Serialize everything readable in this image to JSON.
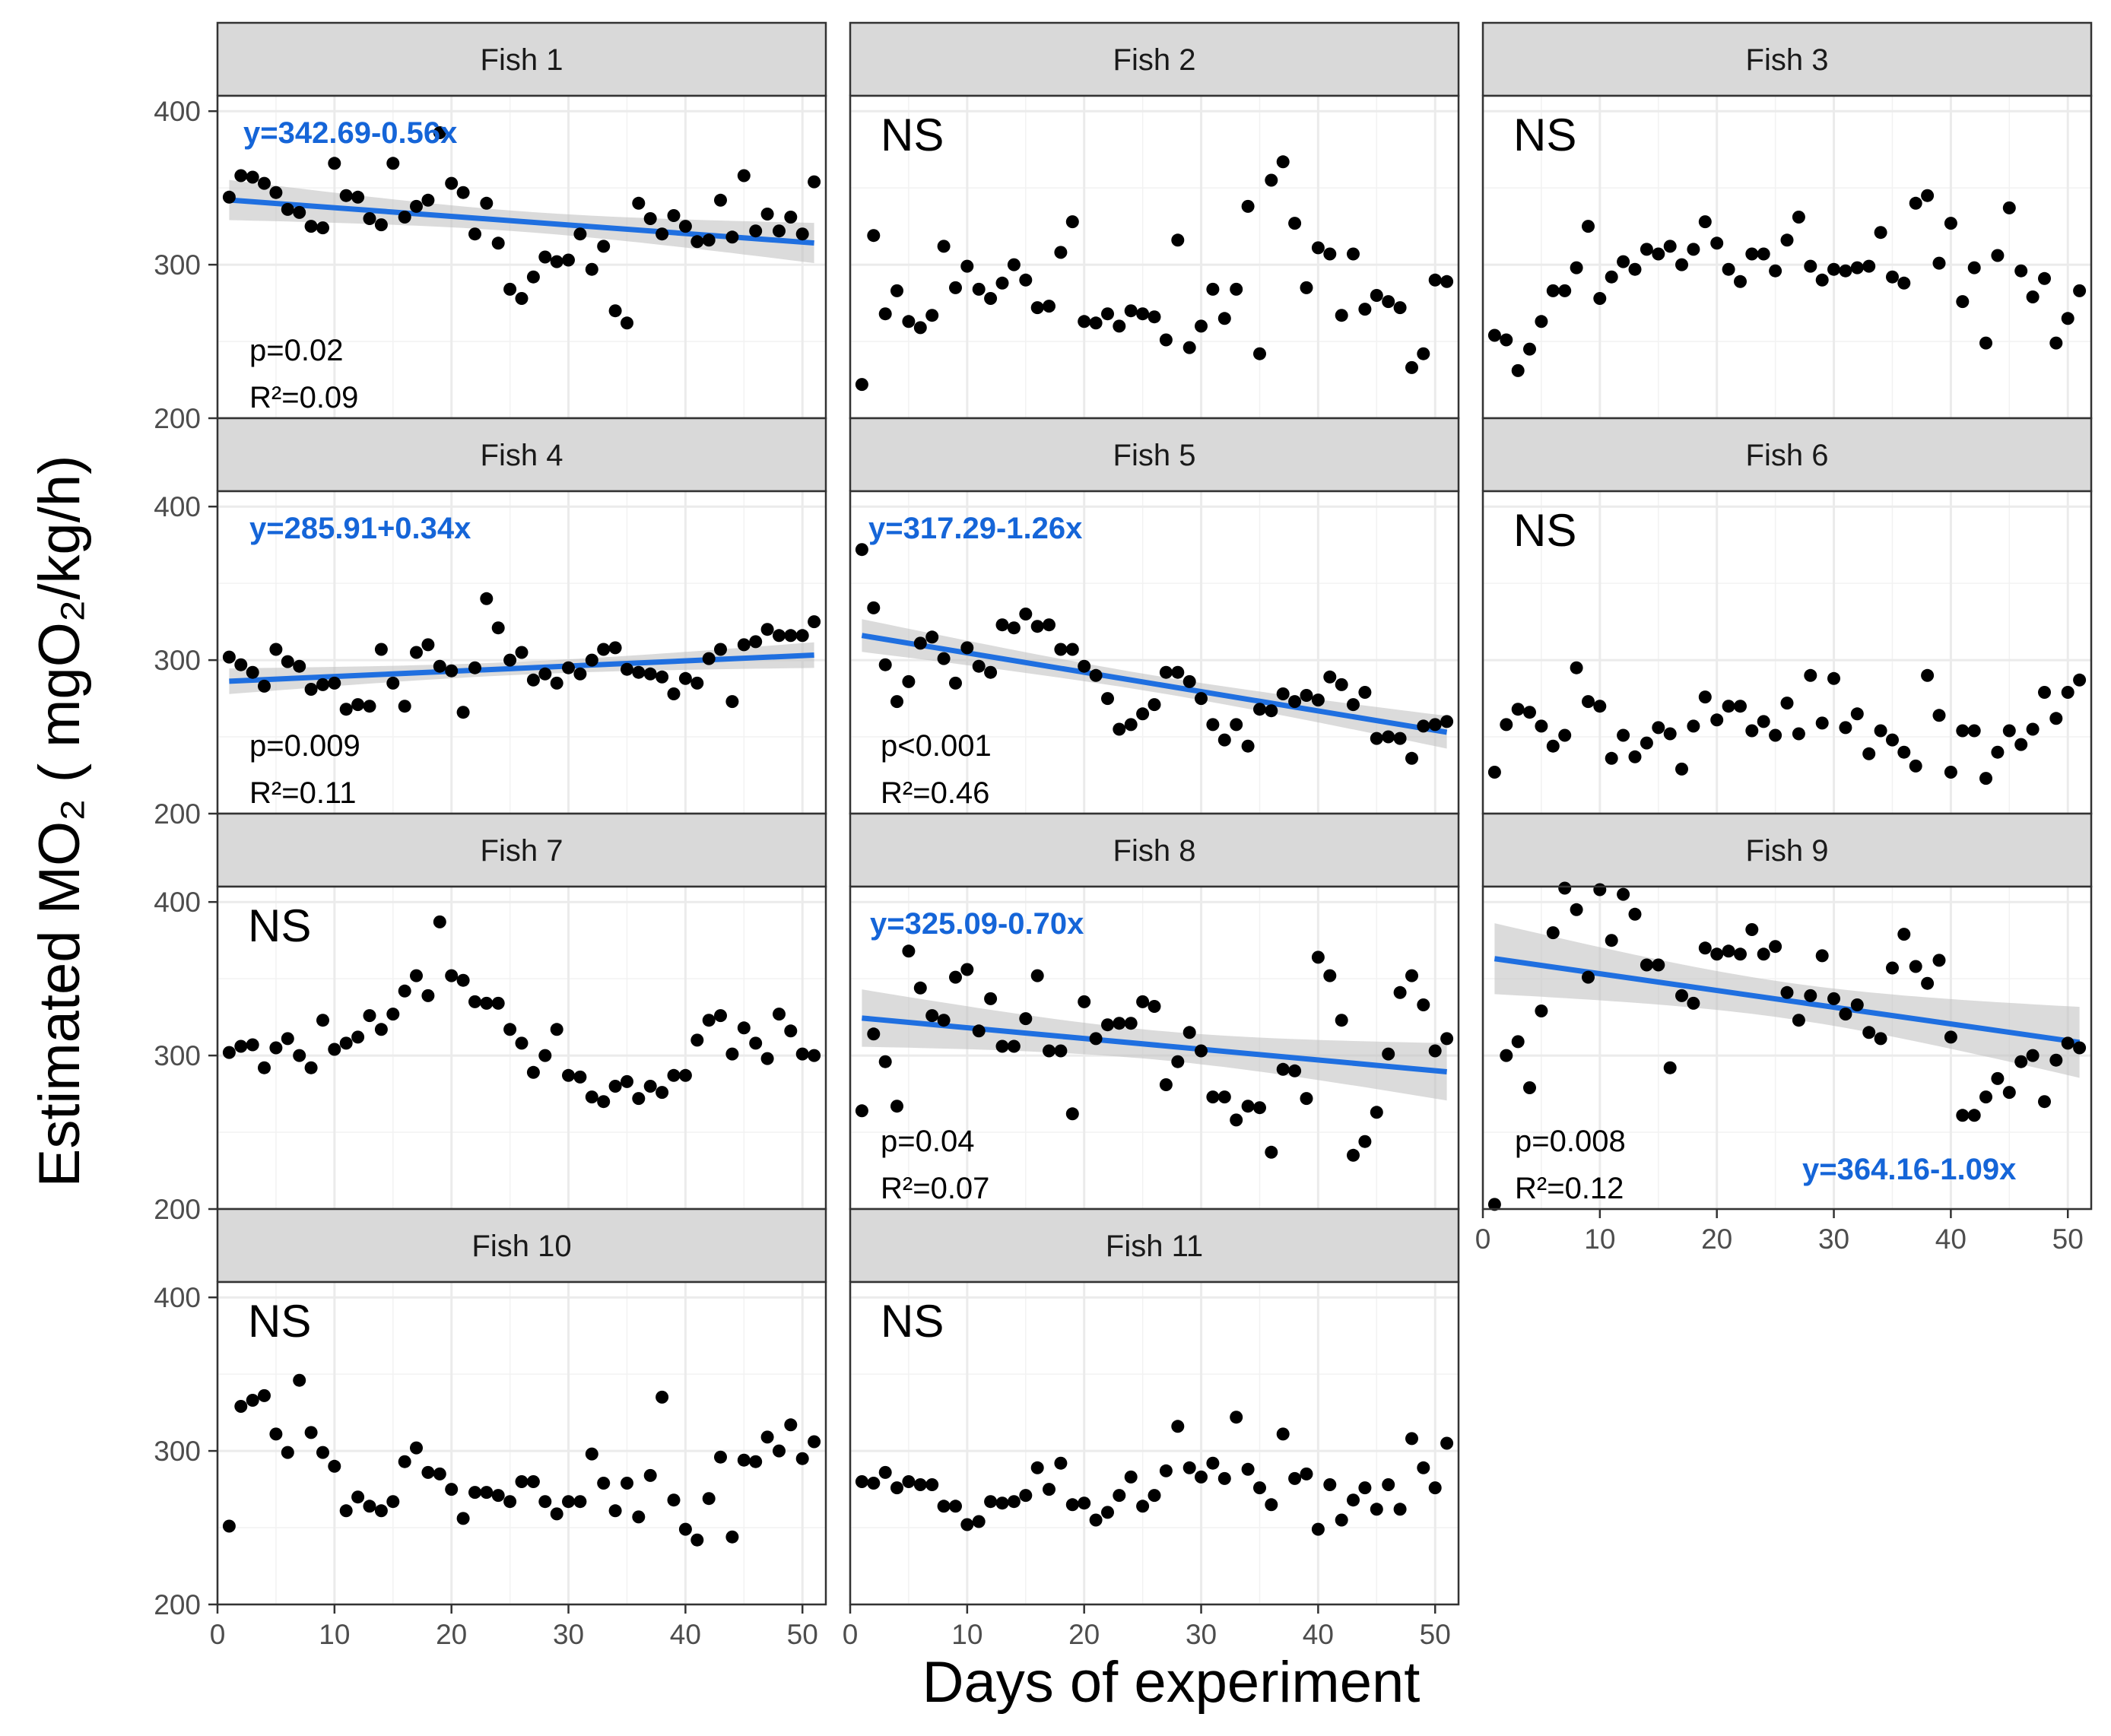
{
  "chart_data": {
    "type": "scatter",
    "title": "",
    "xlabel": "Days of experiment",
    "ylabel": "Estimated MO₂ ( mgO₂/kg/h)",
    "xlim": [
      0,
      52
    ],
    "ylim": [
      200,
      410
    ],
    "x_ticks": [
      0,
      10,
      20,
      30,
      40,
      50
    ],
    "y_ticks": [
      200,
      300,
      400
    ],
    "colors": {
      "points": "#000000",
      "fit_line": "#1f6fe0",
      "confidence_band": "#bdbdbd",
      "strip_fill": "#d9d9d9",
      "grid": "#ebebeb",
      "equation_text": "#1565d8"
    },
    "x": [
      1,
      2,
      3,
      4,
      5,
      6,
      7,
      8,
      9,
      10,
      11,
      12,
      13,
      14,
      15,
      16,
      17,
      18,
      19,
      20,
      21,
      22,
      23,
      24,
      25,
      26,
      27,
      28,
      29,
      30,
      31,
      32,
      33,
      34,
      35,
      36,
      37,
      38,
      39,
      40,
      41,
      42,
      43,
      44,
      45,
      46,
      47,
      48,
      49,
      50,
      51
    ],
    "panels": [
      {
        "name": "Fish 1",
        "significant": true,
        "equation": "y=342.69-0.56x",
        "intercept": 342.69,
        "slope": -0.56,
        "p_label": "p=0.02",
        "r2_label": "R²=0.09",
        "values": [
          344,
          358,
          357,
          353,
          347,
          336,
          334,
          325,
          324,
          366,
          345,
          344,
          330,
          326,
          366,
          331,
          338,
          342,
          386,
          353,
          347,
          320,
          340,
          314,
          284,
          278,
          292,
          305,
          302,
          303,
          320,
          297,
          312,
          270,
          262,
          340,
          330,
          320,
          332,
          325,
          315,
          316,
          342,
          318,
          358,
          322,
          333,
          322,
          331,
          320,
          354
        ]
      },
      {
        "name": "Fish 2",
        "significant": false,
        "ns_label": "NS",
        "values": [
          222,
          319,
          268,
          283,
          263,
          259,
          267,
          312,
          285,
          299,
          284,
          278,
          288,
          300,
          290,
          272,
          273,
          308,
          328,
          263,
          262,
          268,
          260,
          270,
          268,
          266,
          251,
          316,
          246,
          260,
          284,
          265,
          284,
          338,
          242,
          355,
          367,
          327,
          285,
          311,
          307,
          267,
          307,
          271,
          280,
          276,
          272,
          233,
          242,
          290,
          289
        ]
      },
      {
        "name": "Fish 3",
        "significant": false,
        "ns_label": "NS",
        "values": [
          254,
          251,
          231,
          245,
          263,
          283,
          283,
          298,
          325,
          278,
          292,
          302,
          297,
          310,
          307,
          312,
          300,
          310,
          328,
          314,
          297,
          289,
          307,
          307,
          296,
          316,
          331,
          299,
          290,
          297,
          296,
          298,
          299,
          321,
          292,
          288,
          340,
          345,
          301,
          327,
          276,
          298,
          249,
          306,
          337,
          296,
          279,
          291,
          249,
          265,
          283
        ]
      },
      {
        "name": "Fish 4",
        "significant": true,
        "equation": "y=285.91+0.34x",
        "intercept": 285.91,
        "slope": 0.34,
        "p_label": "p=0.009",
        "r2_label": "R²=0.11",
        "values": [
          302,
          297,
          292,
          283,
          307,
          299,
          296,
          281,
          284,
          285,
          268,
          271,
          270,
          307,
          285,
          270,
          305,
          310,
          296,
          293,
          266,
          295,
          340,
          321,
          300,
          305,
          287,
          291,
          285,
          295,
          291,
          300,
          307,
          308,
          294,
          292,
          291,
          289,
          278,
          288,
          285,
          301,
          307,
          273,
          310,
          312,
          320,
          316,
          316,
          316,
          325
        ]
      },
      {
        "name": "Fish 5",
        "significant": true,
        "equation": "y=317.29-1.26x",
        "intercept": 317.29,
        "slope": -1.26,
        "p_label": "p<0.001",
        "r2_label": "R²=0.46",
        "values": [
          372,
          334,
          297,
          273,
          286,
          311,
          315,
          301,
          285,
          308,
          296,
          292,
          323,
          321,
          330,
          322,
          323,
          307,
          307,
          296,
          290,
          275,
          255,
          258,
          265,
          271,
          292,
          292,
          286,
          275,
          258,
          248,
          258,
          244,
          268,
          267,
          278,
          273,
          277,
          274,
          289,
          284,
          271,
          279,
          249,
          250,
          249,
          236,
          257,
          258,
          260
        ]
      },
      {
        "name": "Fish 6",
        "significant": false,
        "ns_label": "NS",
        "values": [
          227,
          258,
          268,
          266,
          257,
          244,
          251,
          295,
          273,
          270,
          236,
          251,
          237,
          246,
          256,
          252,
          229,
          257,
          276,
          261,
          270,
          270,
          254,
          260,
          251,
          272,
          252,
          290,
          259,
          288,
          256,
          265,
          239,
          254,
          248,
          240,
          231,
          290,
          264,
          227,
          254,
          254,
          223,
          240,
          254,
          245,
          255,
          279,
          262,
          279,
          287
        ]
      },
      {
        "name": "Fish 7",
        "significant": false,
        "ns_label": "NS",
        "values": [
          302,
          306,
          307,
          292,
          305,
          311,
          300,
          292,
          323,
          304,
          308,
          312,
          326,
          317,
          327,
          342,
          352,
          339,
          387,
          352,
          349,
          335,
          334,
          334,
          317,
          308,
          289,
          300,
          317,
          287,
          286,
          273,
          270,
          280,
          283,
          272,
          280,
          276,
          287,
          287,
          310,
          323,
          326,
          301,
          318,
          308,
          298,
          327,
          316,
          301,
          300
        ]
      },
      {
        "name": "Fish 8",
        "significant": true,
        "equation": "y=325.09-0.70x",
        "intercept": 325.09,
        "slope": -0.7,
        "p_label": "p=0.04",
        "r2_label": "R²=0.07",
        "values": [
          264,
          314,
          296,
          267,
          368,
          344,
          326,
          323,
          351,
          356,
          316,
          337,
          306,
          306,
          324,
          352,
          303,
          303,
          262,
          335,
          311,
          320,
          321,
          321,
          335,
          332,
          281,
          296,
          315,
          303,
          273,
          273,
          258,
          267,
          266,
          237,
          291,
          290,
          272,
          364,
          352,
          323,
          235,
          244,
          263,
          301,
          341,
          352,
          333,
          303,
          311
        ]
      },
      {
        "name": "Fish 9",
        "significant": true,
        "equation": "y=364.16-1.09x",
        "intercept": 364.16,
        "slope": -1.09,
        "p_label": "p=0.008",
        "r2_label": "R²=0.12",
        "values": [
          203,
          300,
          309,
          279,
          329,
          380,
          409,
          395,
          351,
          408,
          375,
          405,
          392,
          359,
          359,
          292,
          339,
          334,
          370,
          366,
          368,
          366,
          382,
          366,
          371,
          341,
          323,
          339,
          365,
          337,
          327,
          333,
          315,
          311,
          357,
          379,
          358,
          347,
          362,
          312,
          261,
          261,
          273,
          285,
          276,
          296,
          300,
          270,
          297,
          308,
          305
        ]
      },
      {
        "name": "Fish 10",
        "significant": false,
        "ns_label": "NS",
        "values": [
          251,
          329,
          333,
          336,
          311,
          299,
          346,
          312,
          299,
          290,
          261,
          270,
          264,
          261,
          267,
          293,
          302,
          286,
          285,
          275,
          256,
          273,
          273,
          271,
          267,
          280,
          280,
          267,
          259,
          267,
          267,
          298,
          279,
          261,
          279,
          257,
          284,
          335,
          268,
          249,
          242,
          269,
          296,
          244,
          294,
          293,
          309,
          300,
          317,
          295,
          306
        ]
      },
      {
        "name": "Fish 11",
        "significant": false,
        "ns_label": "NS",
        "values": [
          280,
          279,
          286,
          276,
          280,
          278,
          278,
          264,
          264,
          252,
          254,
          267,
          266,
          267,
          271,
          289,
          275,
          292,
          265,
          266,
          255,
          260,
          271,
          283,
          264,
          271,
          287,
          316,
          289,
          283,
          292,
          282,
          322,
          288,
          276,
          265,
          311,
          282,
          285,
          249,
          278,
          255,
          268,
          276,
          262,
          278,
          262,
          308,
          289,
          276,
          305
        ]
      }
    ]
  }
}
